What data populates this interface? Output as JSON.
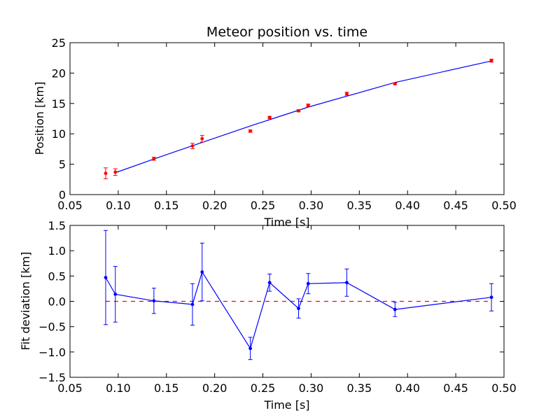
{
  "chart_data": [
    {
      "type": "line",
      "title": "Meteor position vs. time",
      "xlabel": "Time [s]",
      "ylabel": "Position [km]",
      "xlim": [
        0.05,
        0.5
      ],
      "ylim": [
        0,
        25
      ],
      "xticks": [
        "0.05",
        "0.10",
        "0.15",
        "0.20",
        "0.25",
        "0.30",
        "0.35",
        "0.40",
        "0.45",
        "0.50"
      ],
      "yticks": [
        "0",
        "5",
        "10",
        "15",
        "20",
        "25"
      ],
      "grid": false,
      "legend": "none",
      "colors": {
        "fit": "#0000ff",
        "data": "#ff0000"
      },
      "series": [
        {
          "role": "fit-line",
          "x": [
            0.097,
            0.137,
            0.177,
            0.237,
            0.297,
            0.387,
            0.487
          ],
          "y": [
            3.6,
            5.85,
            8.05,
            11.3,
            14.4,
            18.45,
            22.0
          ]
        },
        {
          "role": "measurements",
          "x": [
            0.087,
            0.097,
            0.137,
            0.177,
            0.187,
            0.237,
            0.257,
            0.287,
            0.297,
            0.337,
            0.387,
            0.487
          ],
          "y": [
            3.5,
            3.7,
            5.9,
            8.0,
            9.2,
            10.45,
            12.7,
            13.8,
            14.7,
            16.6,
            18.25,
            22.05
          ],
          "err": [
            0.9,
            0.55,
            0.25,
            0.45,
            0.55,
            0.2,
            0.18,
            0.18,
            0.2,
            0.25,
            0.15,
            0.25
          ]
        }
      ]
    },
    {
      "type": "line",
      "title": "",
      "xlabel": "Time [s]",
      "ylabel": "Fit deviation [km]",
      "xlim": [
        0.05,
        0.5
      ],
      "ylim": [
        -1.5,
        1.5
      ],
      "xticks": [
        "0.05",
        "0.10",
        "0.15",
        "0.20",
        "0.25",
        "0.30",
        "0.35",
        "0.40",
        "0.45",
        "0.50"
      ],
      "yticks": [
        "1.5",
        "1.0",
        "0.5",
        "0.0",
        "−0.5",
        "−1.0",
        "−1.5"
      ],
      "grid": false,
      "legend": "none",
      "colors": {
        "deviation": "#0000ff",
        "zero_line": "#ff0000"
      },
      "zero_line": 0,
      "series": [
        {
          "role": "deviation",
          "x": [
            0.087,
            0.097,
            0.137,
            0.177,
            0.187,
            0.237,
            0.257,
            0.287,
            0.297,
            0.337,
            0.387,
            0.487
          ],
          "y": [
            0.47,
            0.14,
            0.01,
            -0.06,
            0.58,
            -0.93,
            0.37,
            -0.14,
            0.35,
            0.37,
            -0.16,
            0.08
          ],
          "err": [
            0.93,
            0.55,
            0.25,
            0.41,
            0.57,
            0.22,
            0.17,
            0.19,
            0.2,
            0.27,
            0.14,
            0.27
          ]
        }
      ]
    }
  ]
}
